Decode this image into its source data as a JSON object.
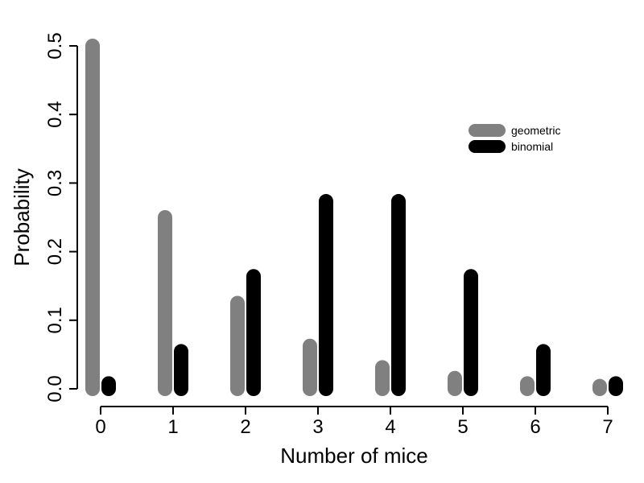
{
  "chart_data": {
    "type": "bar",
    "xlabel": "Number of mice",
    "ylabel": "Probability",
    "categories": [
      "0",
      "1",
      "2",
      "3",
      "4",
      "5",
      "6",
      "7"
    ],
    "ylim": [
      0,
      0.5
    ],
    "yticks": [
      "0.0",
      "0.1",
      "0.2",
      "0.3",
      "0.4",
      "0.5"
    ],
    "legend_position": "top-right",
    "grid": false,
    "series": [
      {
        "name": "geometric",
        "color": "#808080",
        "values": [
          0.5,
          0.25,
          0.125,
          0.0625,
          0.03125,
          0.015625,
          0.0078125,
          0.00390625
        ]
      },
      {
        "name": "binomial",
        "color": "#000000",
        "values": [
          0.0078125,
          0.0546875,
          0.1640625,
          0.2734375,
          0.2734375,
          0.1640625,
          0.0546875,
          0.0078125
        ]
      }
    ]
  }
}
